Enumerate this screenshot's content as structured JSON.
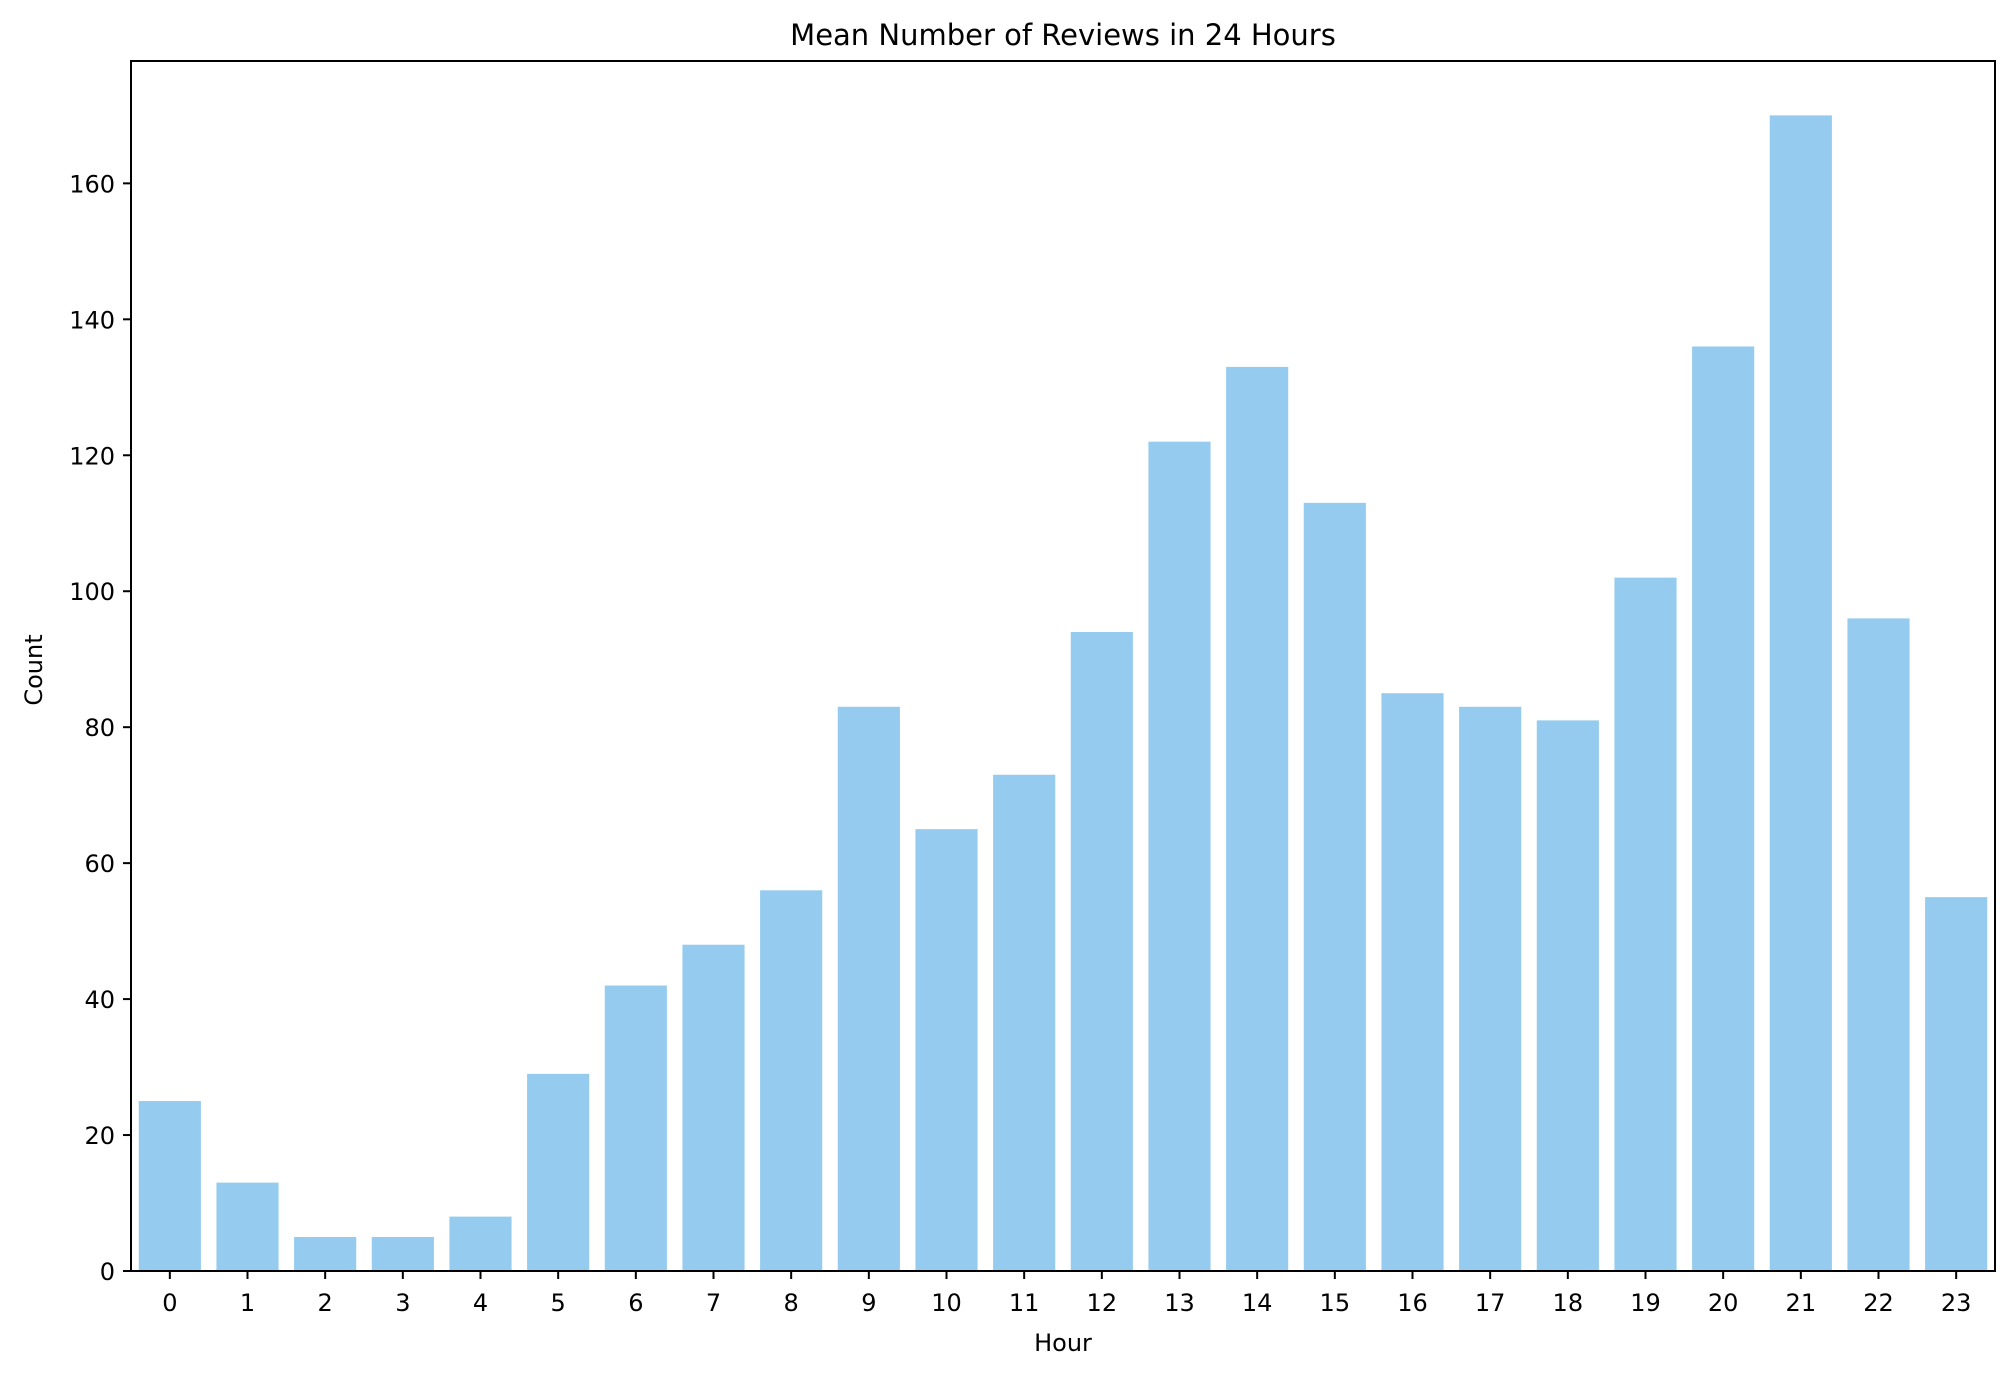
{
  "chart_data": {
    "type": "bar",
    "title": "Mean Number of Reviews in 24 Hours",
    "xlabel": "Hour",
    "ylabel": "Count",
    "categories": [
      "0",
      "1",
      "2",
      "3",
      "4",
      "5",
      "6",
      "7",
      "8",
      "9",
      "10",
      "11",
      "12",
      "13",
      "14",
      "15",
      "16",
      "17",
      "18",
      "19",
      "20",
      "21",
      "22",
      "23"
    ],
    "values": [
      25,
      13,
      5,
      5,
      8,
      29,
      42,
      48,
      56,
      83,
      65,
      73,
      94,
      122,
      133,
      113,
      85,
      83,
      81,
      102,
      136,
      170,
      96,
      55
    ],
    "yticks": [
      0,
      20,
      40,
      60,
      80,
      100,
      120,
      140,
      160
    ],
    "ylim": [
      0,
      178
    ],
    "grid": false,
    "bar_color": "#94cbee",
    "axis_color": "#000000"
  }
}
